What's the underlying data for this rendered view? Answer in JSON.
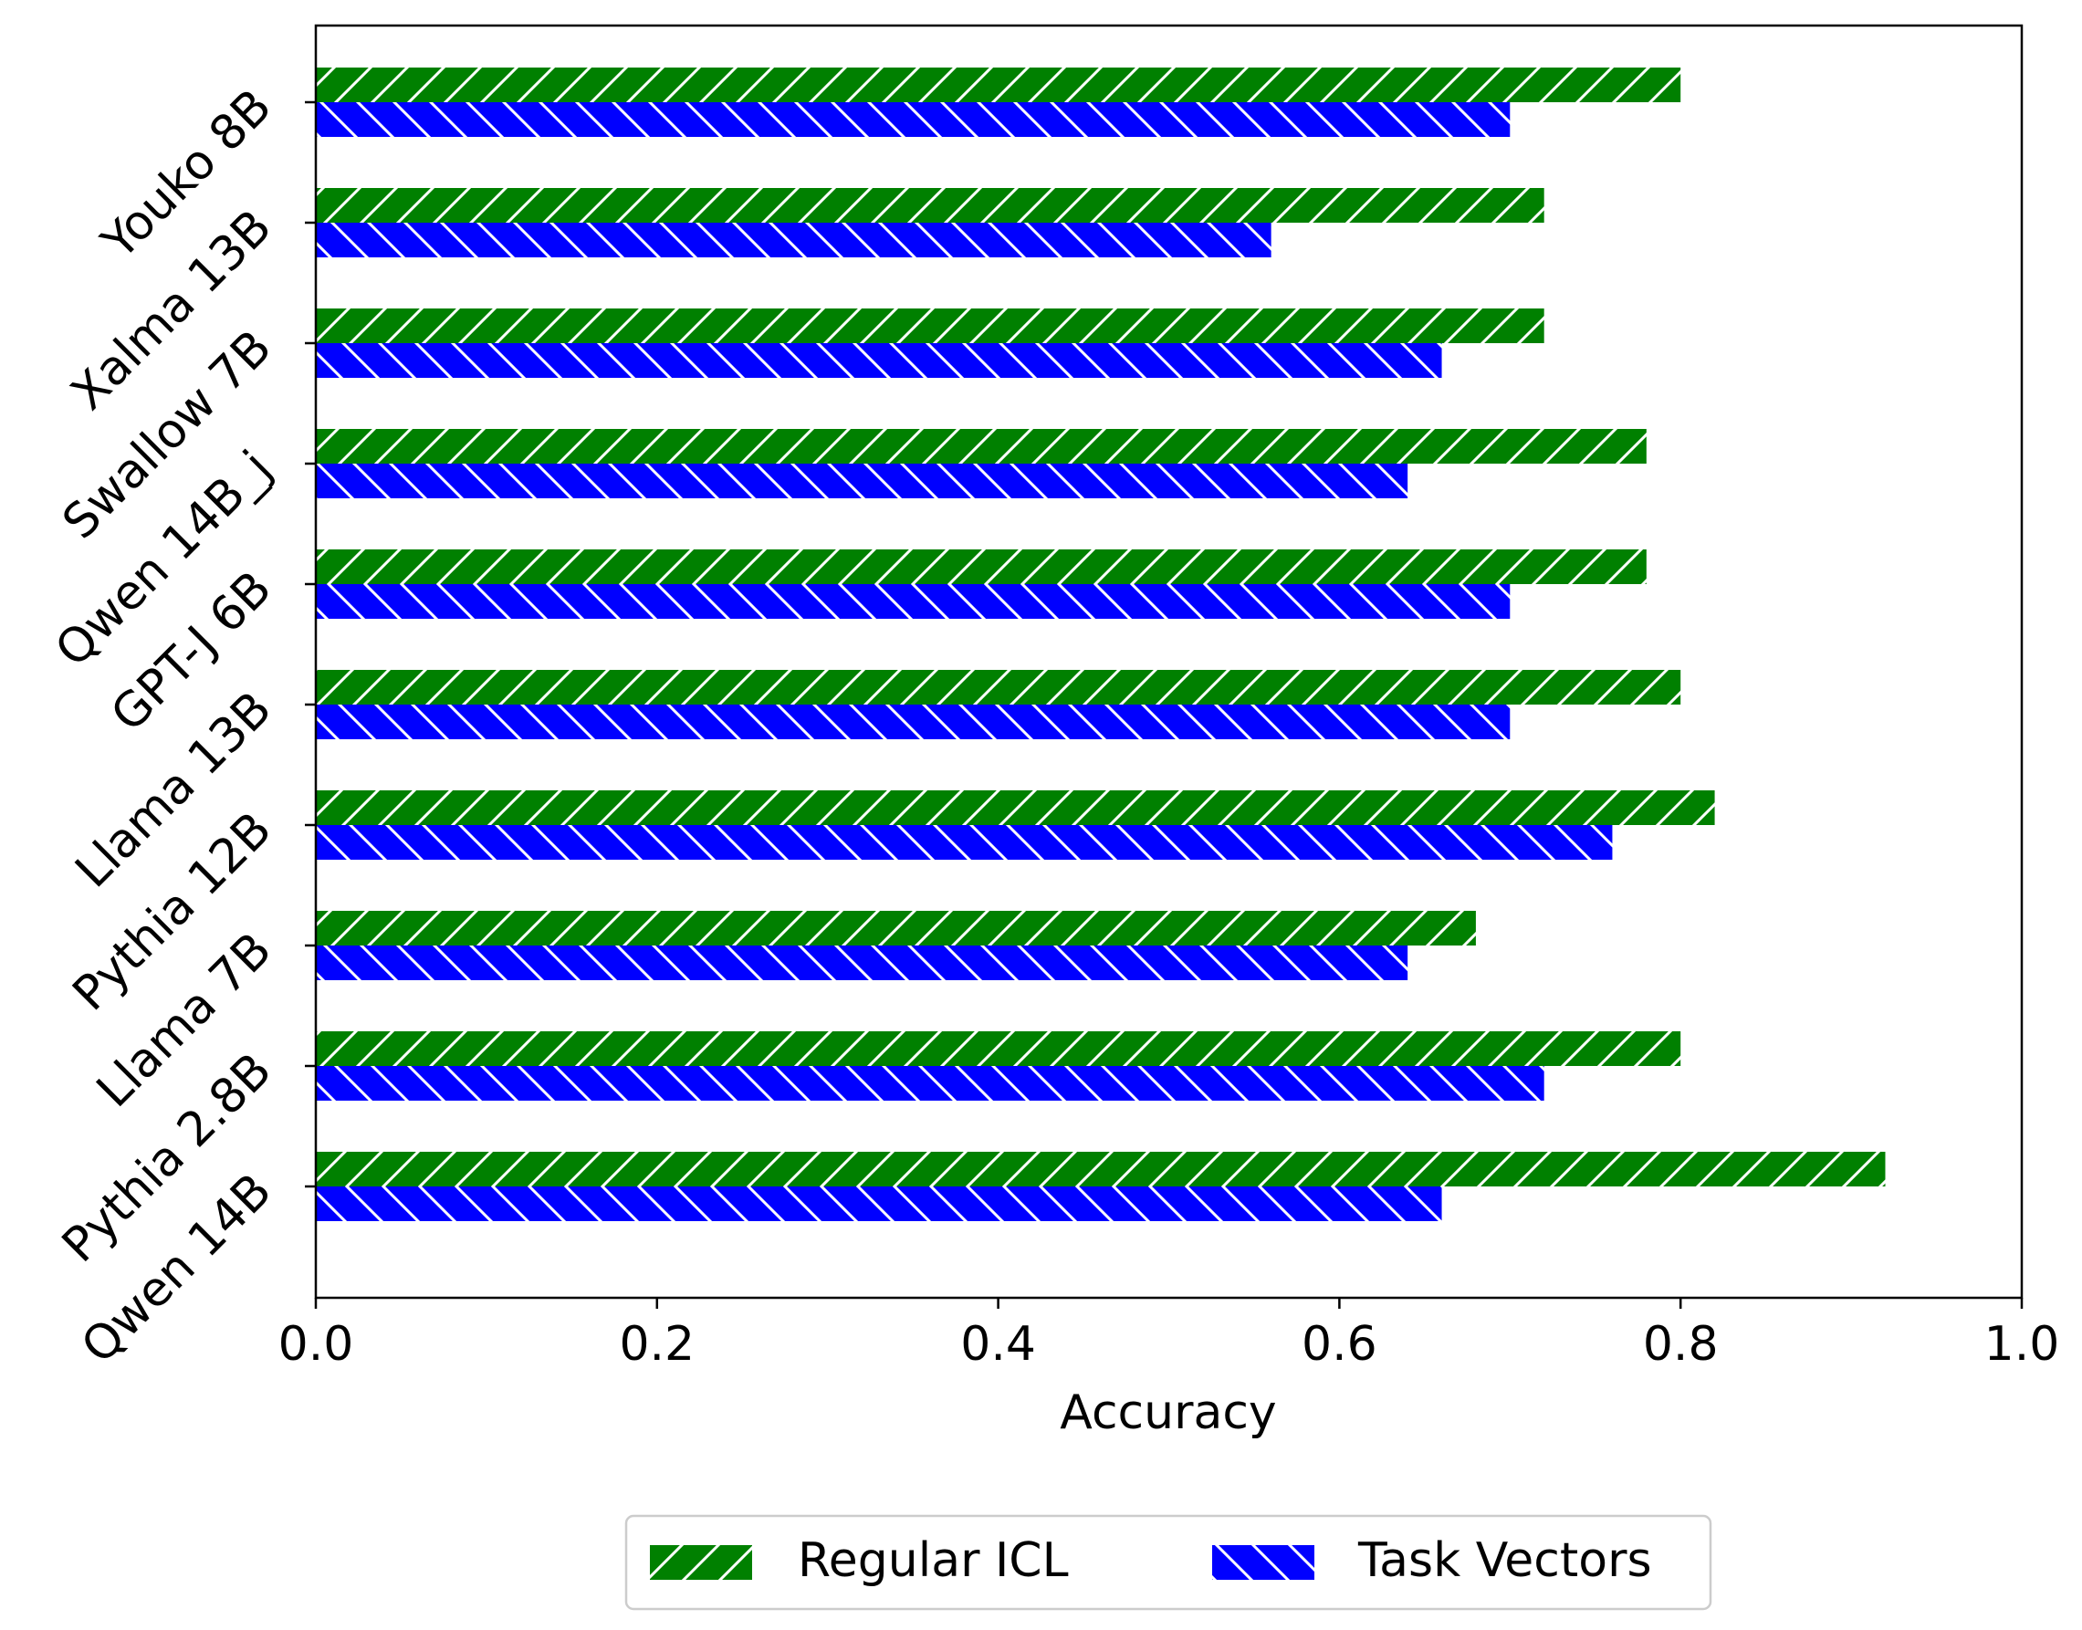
{
  "chart_data": {
    "type": "bar",
    "orientation": "horizontal",
    "xlabel": "Accuracy",
    "xlim": [
      0,
      1.0
    ],
    "xticks": [
      "0.0",
      "0.2",
      "0.4",
      "0.6",
      "0.8",
      "1.0"
    ],
    "xtick_values": [
      0.0,
      0.2,
      0.4,
      0.6,
      0.8,
      1.0
    ],
    "grid": false,
    "legend_position": "bottom-center",
    "categories": [
      "Youko 8B",
      "Xalma 13B",
      "Swallow 7B",
      "Qwen 14B_j",
      "GPT-J 6B",
      "Llama 13B",
      "Pythia 12B",
      "Llama 7B",
      "Pythia 2.8B",
      "Qwen 14B"
    ],
    "series": [
      {
        "name": "Regular ICL",
        "color": "#008000",
        "hatch": "forward-diagonal",
        "values": [
          0.8,
          0.72,
          0.72,
          0.78,
          0.78,
          0.8,
          0.82,
          0.68,
          0.8,
          0.92
        ]
      },
      {
        "name": "Task Vectors",
        "color": "#0000ff",
        "hatch": "backward-diagonal",
        "values": [
          0.7,
          0.56,
          0.66,
          0.64,
          0.7,
          0.7,
          0.76,
          0.64,
          0.72,
          0.66
        ]
      }
    ]
  }
}
